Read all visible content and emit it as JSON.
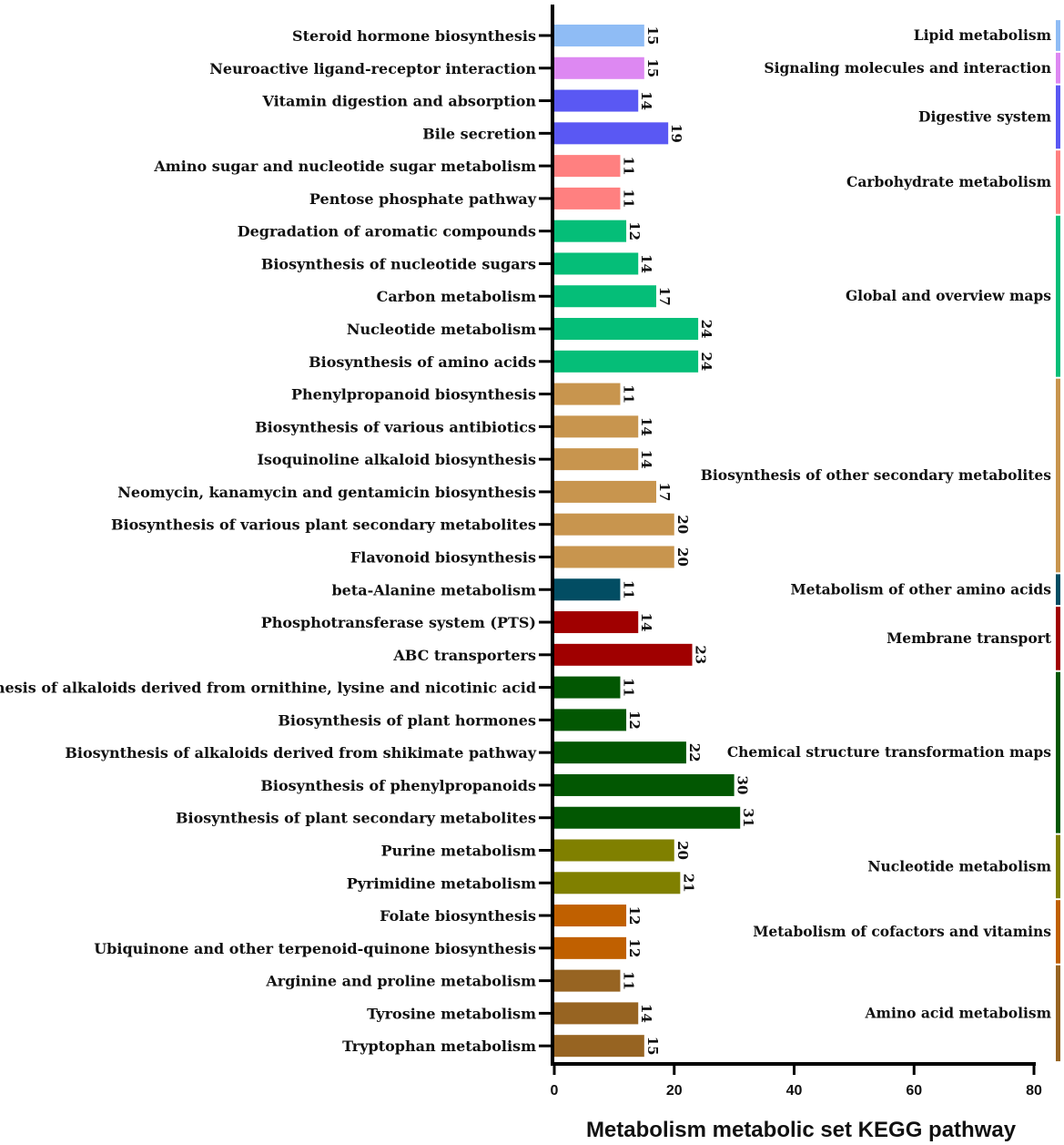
{
  "chart_data": {
    "type": "bar",
    "orientation": "horizontal",
    "title": "",
    "xlabel": "Metabolism metabolic set KEGG pathway",
    "ylabel": "",
    "xlim": [
      0,
      80
    ],
    "xticks": [
      0,
      20,
      40,
      60,
      80
    ],
    "grid": false,
    "categories": [
      "Steroid hormone biosynthesis",
      "Neuroactive ligand-receptor interaction",
      "Vitamin digestion and absorption",
      "Bile secretion",
      "Amino sugar and nucleotide sugar metabolism",
      "Pentose phosphate pathway",
      "Degradation of aromatic compounds",
      "Biosynthesis of nucleotide sugars",
      "Carbon metabolism",
      "Nucleotide metabolism",
      "Biosynthesis of amino acids",
      "Phenylpropanoid biosynthesis",
      "Biosynthesis of various antibiotics",
      "Isoquinoline alkaloid biosynthesis",
      "Neomycin, kanamycin and gentamicin biosynthesis",
      "Biosynthesis of various plant secondary metabolites",
      "Flavonoid biosynthesis",
      "beta-Alanine metabolism",
      "Phosphotransferase system (PTS)",
      "ABC transporters",
      "Biosynthesis of alkaloids derived from ornithine, lysine and nicotinic acid",
      "Biosynthesis of plant hormones",
      "Biosynthesis of alkaloids derived from shikimate pathway",
      "Biosynthesis of phenylpropanoids",
      "Biosynthesis of plant secondary metabolites",
      "Purine metabolism",
      "Pyrimidine metabolism",
      "Folate biosynthesis",
      "Ubiquinone and other terpenoid-quinone biosynthesis",
      "Arginine and proline metabolism",
      "Tyrosine metabolism",
      "Tryptophan metabolism"
    ],
    "values": [
      15,
      15,
      14,
      19,
      11,
      11,
      12,
      14,
      17,
      24,
      24,
      11,
      14,
      14,
      17,
      20,
      20,
      11,
      14,
      23,
      11,
      12,
      22,
      30,
      31,
      20,
      21,
      12,
      12,
      11,
      14,
      15
    ],
    "groups": [
      {
        "name": "Lipid metabolism",
        "start": 0,
        "end": 0,
        "color": "#8fbcf5"
      },
      {
        "name": "Signaling molecules and interaction",
        "start": 1,
        "end": 1,
        "color": "#dd88f2"
      },
      {
        "name": "Digestive system",
        "start": 2,
        "end": 3,
        "color": "#5a58f3"
      },
      {
        "name": "Carbohydrate metabolism",
        "start": 4,
        "end": 5,
        "color": "#ff8080"
      },
      {
        "name": "Global and overview maps",
        "start": 6,
        "end": 10,
        "color": "#05be78"
      },
      {
        "name": "Biosynthesis of other secondary metabolites",
        "start": 11,
        "end": 16,
        "color": "#c8954e"
      },
      {
        "name": "Metabolism of other amino acids",
        "start": 17,
        "end": 17,
        "color": "#024d63"
      },
      {
        "name": "Membrane transport",
        "start": 18,
        "end": 19,
        "color": "#a00000"
      },
      {
        "name": "Chemical structure transformation maps",
        "start": 20,
        "end": 24,
        "color": "#025702"
      },
      {
        "name": "Nucleotide metabolism",
        "start": 25,
        "end": 26,
        "color": "#808000"
      },
      {
        "name": "Metabolism of cofactors and vitamins",
        "start": 27,
        "end": 28,
        "color": "#c06000"
      },
      {
        "name": "Amino acid metabolism",
        "start": 29,
        "end": 31,
        "color": "#976422"
      }
    ]
  }
}
